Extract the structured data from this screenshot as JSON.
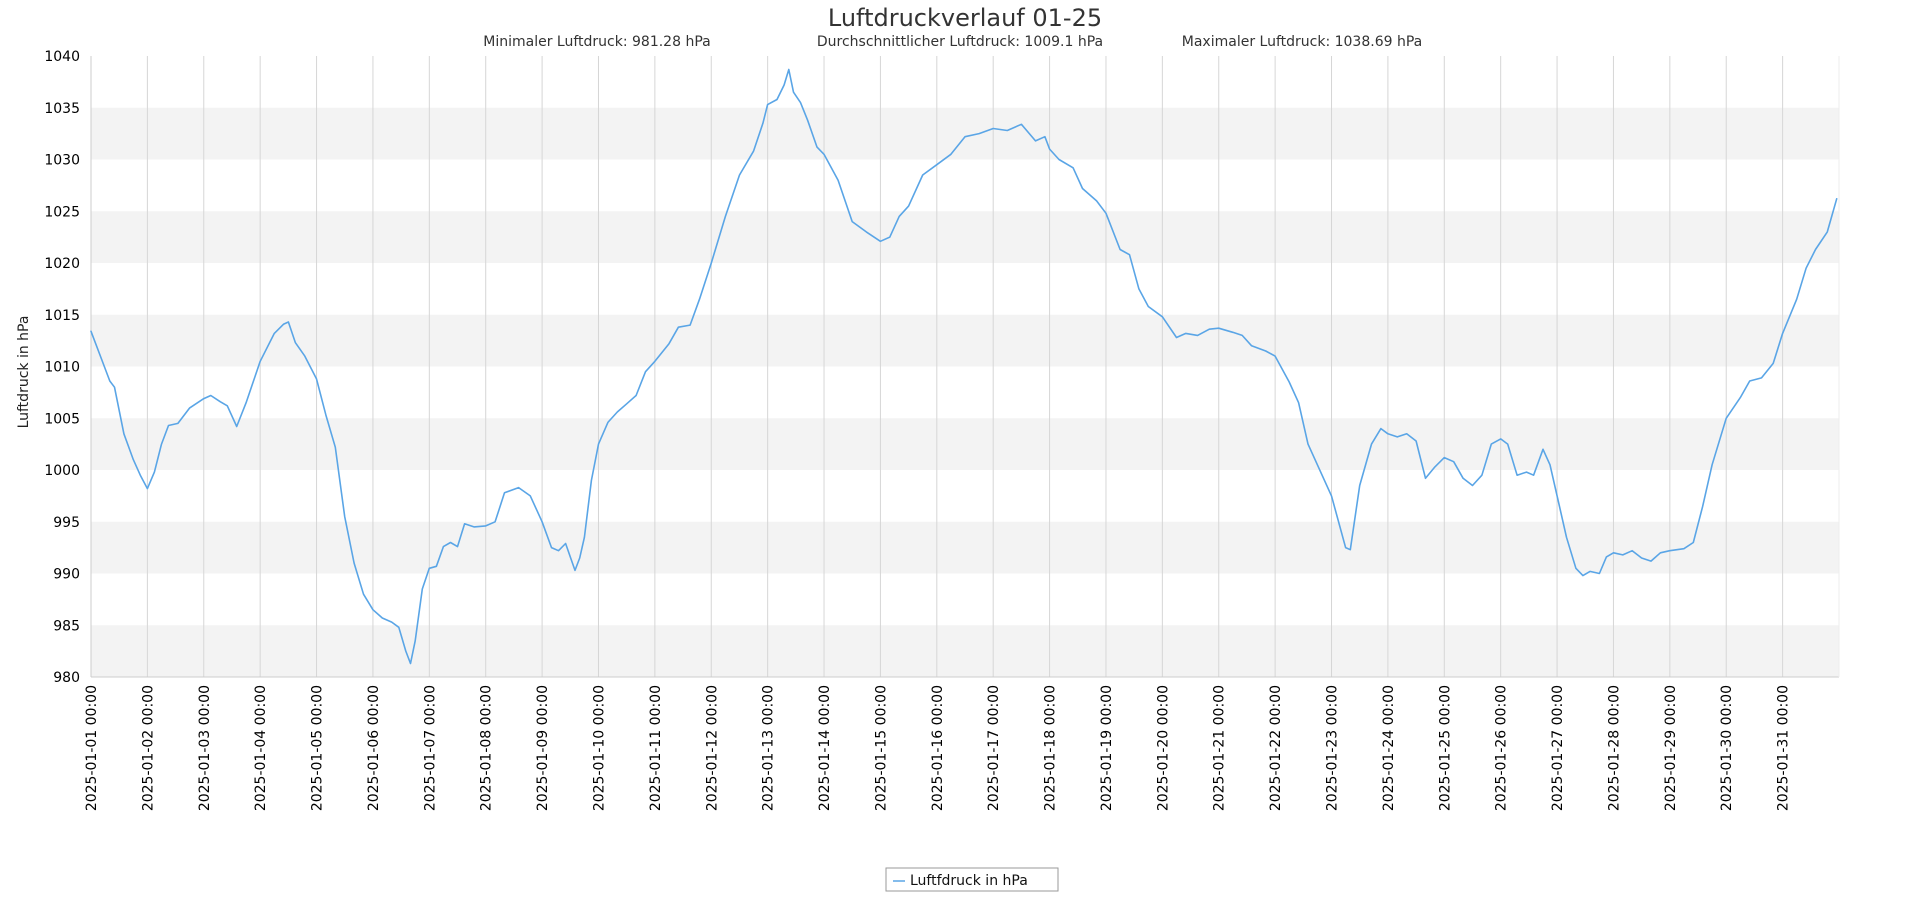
{
  "chart_data": {
    "type": "line",
    "title": "Luftdruckverlauf 01-25",
    "stats": {
      "min": "Minimaler Luftdruck: 981.28 hPa",
      "avg": "Durchschnittlicher Luftdruck: 1009.1 hPa",
      "max": "Maximaler Luftdruck: 1038.69 hPa"
    },
    "ylabel": "Luftdruck in hPa",
    "xlabel": "",
    "ylim": [
      980,
      1040
    ],
    "yticks": [
      980,
      985,
      990,
      995,
      1000,
      1005,
      1010,
      1015,
      1020,
      1025,
      1030,
      1035,
      1040
    ],
    "xlim": [
      "2025-01-01 00:00",
      "2025-02-01 00:00"
    ],
    "xticks": [
      "2025-01-01 00:00",
      "2025-01-02 00:00",
      "2025-01-03 00:00",
      "2025-01-04 00:00",
      "2025-01-05 00:00",
      "2025-01-06 00:00",
      "2025-01-07 00:00",
      "2025-01-08 00:00",
      "2025-01-09 00:00",
      "2025-01-10 00:00",
      "2025-01-11 00:00",
      "2025-01-12 00:00",
      "2025-01-13 00:00",
      "2025-01-14 00:00",
      "2025-01-15 00:00",
      "2025-01-16 00:00",
      "2025-01-17 00:00",
      "2025-01-18 00:00",
      "2025-01-19 00:00",
      "2025-01-20 00:00",
      "2025-01-21 00:00",
      "2025-01-22 00:00",
      "2025-01-23 00:00",
      "2025-01-24 00:00",
      "2025-01-25 00:00",
      "2025-01-26 00:00",
      "2025-01-27 00:00",
      "2025-01-28 00:00",
      "2025-01-29 00:00",
      "2025-01-30 00:00",
      "2025-01-31 00:00"
    ],
    "grid": true,
    "legend_position": "bottom-center",
    "colors": {
      "line": "#5aa5e6",
      "band": "#f3f3f3",
      "gridline": "#d6d6d6",
      "axis": "#cccccc"
    },
    "series": [
      {
        "name": "Luftfdruck in hPa",
        "points": [
          [
            "2025-01-01 00:00",
            1013.4
          ],
          [
            "2025-01-01 04:00",
            1011.0
          ],
          [
            "2025-01-01 08:00",
            1008.6
          ],
          [
            "2025-01-01 10:00",
            1008.0
          ],
          [
            "2025-01-01 14:00",
            1003.5
          ],
          [
            "2025-01-01 18:00",
            1001.0
          ],
          [
            "2025-01-01 21:00",
            999.5
          ],
          [
            "2025-01-02 00:00",
            998.2
          ],
          [
            "2025-01-02 03:00",
            999.8
          ],
          [
            "2025-01-02 06:00",
            1002.5
          ],
          [
            "2025-01-02 09:00",
            1004.3
          ],
          [
            "2025-01-02 13:00",
            1004.5
          ],
          [
            "2025-01-02 18:00",
            1006.0
          ],
          [
            "2025-01-03 00:00",
            1006.9
          ],
          [
            "2025-01-03 03:00",
            1007.2
          ],
          [
            "2025-01-03 07:00",
            1006.6
          ],
          [
            "2025-01-03 10:00",
            1006.2
          ],
          [
            "2025-01-03 14:00",
            1004.2
          ],
          [
            "2025-01-03 18:00",
            1006.5
          ],
          [
            "2025-01-04 00:00",
            1010.5
          ],
          [
            "2025-01-04 06:00",
            1013.2
          ],
          [
            "2025-01-04 10:00",
            1014.1
          ],
          [
            "2025-01-04 12:00",
            1014.3
          ],
          [
            "2025-01-04 15:00",
            1012.3
          ],
          [
            "2025-01-04 19:00",
            1011.0
          ],
          [
            "2025-01-05 00:00",
            1008.8
          ],
          [
            "2025-01-05 04:00",
            1005.3
          ],
          [
            "2025-01-05 08:00",
            1002.2
          ],
          [
            "2025-01-05 12:00",
            995.5
          ],
          [
            "2025-01-05 16:00",
            991.0
          ],
          [
            "2025-01-05 20:00",
            988.0
          ],
          [
            "2025-01-06 00:00",
            986.5
          ],
          [
            "2025-01-06 04:00",
            985.7
          ],
          [
            "2025-01-06 08:00",
            985.3
          ],
          [
            "2025-01-06 11:00",
            984.8
          ],
          [
            "2025-01-06 14:00",
            982.5
          ],
          [
            "2025-01-06 16:00",
            981.3
          ],
          [
            "2025-01-06 18:00",
            983.5
          ],
          [
            "2025-01-06 21:00",
            988.5
          ],
          [
            "2025-01-07 00:00",
            990.5
          ],
          [
            "2025-01-07 03:00",
            990.7
          ],
          [
            "2025-01-07 06:00",
            992.6
          ],
          [
            "2025-01-07 09:00",
            993.0
          ],
          [
            "2025-01-07 12:00",
            992.6
          ],
          [
            "2025-01-07 15:00",
            994.8
          ],
          [
            "2025-01-07 19:00",
            994.5
          ],
          [
            "2025-01-08 00:00",
            994.6
          ],
          [
            "2025-01-08 04:00",
            995.0
          ],
          [
            "2025-01-08 08:00",
            997.8
          ],
          [
            "2025-01-08 14:00",
            998.3
          ],
          [
            "2025-01-08 19:00",
            997.5
          ],
          [
            "2025-01-09 00:00",
            995.0
          ],
          [
            "2025-01-09 04:00",
            992.5
          ],
          [
            "2025-01-09 07:00",
            992.2
          ],
          [
            "2025-01-09 10:00",
            992.9
          ],
          [
            "2025-01-09 14:00",
            990.3
          ],
          [
            "2025-01-09 16:00",
            991.5
          ],
          [
            "2025-01-09 18:00",
            993.5
          ],
          [
            "2025-01-09 21:00",
            999.0
          ],
          [
            "2025-01-10 00:00",
            1002.5
          ],
          [
            "2025-01-10 04:00",
            1004.6
          ],
          [
            "2025-01-10 08:00",
            1005.6
          ],
          [
            "2025-01-10 12:00",
            1006.4
          ],
          [
            "2025-01-10 16:00",
            1007.2
          ],
          [
            "2025-01-10 20:00",
            1009.5
          ],
          [
            "2025-01-11 00:00",
            1010.5
          ],
          [
            "2025-01-11 06:00",
            1012.2
          ],
          [
            "2025-01-11 10:00",
            1013.8
          ],
          [
            "2025-01-11 15:00",
            1014.0
          ],
          [
            "2025-01-11 19:00",
            1016.5
          ],
          [
            "2025-01-12 00:00",
            1020.0
          ],
          [
            "2025-01-12 06:00",
            1024.5
          ],
          [
            "2025-01-12 12:00",
            1028.5
          ],
          [
            "2025-01-12 18:00",
            1030.8
          ],
          [
            "2025-01-12 22:00",
            1033.5
          ],
          [
            "2025-01-13 00:00",
            1035.3
          ],
          [
            "2025-01-13 04:00",
            1035.8
          ],
          [
            "2025-01-13 07:00",
            1037.2
          ],
          [
            "2025-01-13 09:00",
            1038.7
          ],
          [
            "2025-01-13 11:00",
            1036.5
          ],
          [
            "2025-01-13 14:00",
            1035.5
          ],
          [
            "2025-01-13 17:00",
            1033.8
          ],
          [
            "2025-01-13 21:00",
            1031.2
          ],
          [
            "2025-01-14 00:00",
            1030.5
          ],
          [
            "2025-01-14 06:00",
            1028.0
          ],
          [
            "2025-01-14 12:00",
            1024.0
          ],
          [
            "2025-01-14 18:00",
            1023.0
          ],
          [
            "2025-01-15 00:00",
            1022.1
          ],
          [
            "2025-01-15 04:00",
            1022.5
          ],
          [
            "2025-01-15 08:00",
            1024.5
          ],
          [
            "2025-01-15 12:00",
            1025.5
          ],
          [
            "2025-01-15 18:00",
            1028.5
          ],
          [
            "2025-01-16 00:00",
            1029.5
          ],
          [
            "2025-01-16 06:00",
            1030.5
          ],
          [
            "2025-01-16 12:00",
            1032.2
          ],
          [
            "2025-01-16 18:00",
            1032.5
          ],
          [
            "2025-01-17 00:00",
            1033.0
          ],
          [
            "2025-01-17 06:00",
            1032.8
          ],
          [
            "2025-01-17 12:00",
            1033.4
          ],
          [
            "2025-01-17 18:00",
            1031.8
          ],
          [
            "2025-01-17 22:00",
            1032.2
          ],
          [
            "2025-01-18 00:00",
            1031.0
          ],
          [
            "2025-01-18 04:00",
            1030.0
          ],
          [
            "2025-01-18 10:00",
            1029.2
          ],
          [
            "2025-01-18 14:00",
            1027.2
          ],
          [
            "2025-01-18 20:00",
            1026.0
          ],
          [
            "2025-01-19 00:00",
            1024.8
          ],
          [
            "2025-01-19 06:00",
            1021.3
          ],
          [
            "2025-01-19 10:00",
            1020.8
          ],
          [
            "2025-01-19 14:00",
            1017.5
          ],
          [
            "2025-01-19 18:00",
            1015.8
          ],
          [
            "2025-01-20 00:00",
            1014.8
          ],
          [
            "2025-01-20 06:00",
            1012.8
          ],
          [
            "2025-01-20 10:00",
            1013.2
          ],
          [
            "2025-01-20 15:00",
            1013.0
          ],
          [
            "2025-01-20 20:00",
            1013.6
          ],
          [
            "2025-01-21 00:00",
            1013.7
          ],
          [
            "2025-01-21 06:00",
            1013.3
          ],
          [
            "2025-01-21 10:00",
            1013.0
          ],
          [
            "2025-01-21 14:00",
            1012.0
          ],
          [
            "2025-01-21 20:00",
            1011.5
          ],
          [
            "2025-01-22 00:00",
            1011.0
          ],
          [
            "2025-01-22 06:00",
            1008.5
          ],
          [
            "2025-01-22 10:00",
            1006.5
          ],
          [
            "2025-01-22 14:00",
            1002.5
          ],
          [
            "2025-01-22 18:00",
            1000.5
          ],
          [
            "2025-01-23 00:00",
            997.5
          ],
          [
            "2025-01-23 06:00",
            992.5
          ],
          [
            "2025-01-23 08:00",
            992.3
          ],
          [
            "2025-01-23 12:00",
            998.5
          ],
          [
            "2025-01-23 17:00",
            1002.5
          ],
          [
            "2025-01-23 21:00",
            1004.0
          ],
          [
            "2025-01-24 00:00",
            1003.5
          ],
          [
            "2025-01-24 04:00",
            1003.2
          ],
          [
            "2025-01-24 08:00",
            1003.5
          ],
          [
            "2025-01-24 12:00",
            1002.8
          ],
          [
            "2025-01-24 16:00",
            999.2
          ],
          [
            "2025-01-24 20:00",
            1000.3
          ],
          [
            "2025-01-25 00:00",
            1001.2
          ],
          [
            "2025-01-25 04:00",
            1000.8
          ],
          [
            "2025-01-25 08:00",
            999.2
          ],
          [
            "2025-01-25 12:00",
            998.5
          ],
          [
            "2025-01-25 16:00",
            999.5
          ],
          [
            "2025-01-25 20:00",
            1002.5
          ],
          [
            "2025-01-26 00:00",
            1003.0
          ],
          [
            "2025-01-26 03:00",
            1002.5
          ],
          [
            "2025-01-26 07:00",
            999.5
          ],
          [
            "2025-01-26 11:00",
            999.8
          ],
          [
            "2025-01-26 14:00",
            999.5
          ],
          [
            "2025-01-26 18:00",
            1002.0
          ],
          [
            "2025-01-26 21:00",
            1000.5
          ],
          [
            "2025-01-27 00:00",
            997.5
          ],
          [
            "2025-01-27 04:00",
            993.5
          ],
          [
            "2025-01-27 08:00",
            990.5
          ],
          [
            "2025-01-27 11:00",
            989.8
          ],
          [
            "2025-01-27 14:00",
            990.2
          ],
          [
            "2025-01-27 18:00",
            990.0
          ],
          [
            "2025-01-27 21:00",
            991.6
          ],
          [
            "2025-01-28 00:00",
            992.0
          ],
          [
            "2025-01-28 04:00",
            991.8
          ],
          [
            "2025-01-28 08:00",
            992.2
          ],
          [
            "2025-01-28 12:00",
            991.5
          ],
          [
            "2025-01-28 16:00",
            991.2
          ],
          [
            "2025-01-28 20:00",
            992.0
          ],
          [
            "2025-01-29 00:00",
            992.2
          ],
          [
            "2025-01-29 06:00",
            992.4
          ],
          [
            "2025-01-29 10:00",
            993.0
          ],
          [
            "2025-01-29 14:00",
            996.5
          ],
          [
            "2025-01-29 18:00",
            1000.5
          ],
          [
            "2025-01-29 22:00",
            1003.5
          ],
          [
            "2025-01-30 00:00",
            1005.0
          ],
          [
            "2025-01-30 06:00",
            1007.0
          ],
          [
            "2025-01-30 10:00",
            1008.6
          ],
          [
            "2025-01-30 15:00",
            1008.9
          ],
          [
            "2025-01-30 20:00",
            1010.3
          ],
          [
            "2025-01-31 00:00",
            1013.2
          ],
          [
            "2025-01-31 06:00",
            1016.5
          ],
          [
            "2025-01-31 10:00",
            1019.5
          ],
          [
            "2025-01-31 14:00",
            1021.3
          ],
          [
            "2025-01-31 19:00",
            1023.0
          ],
          [
            "2025-01-31 23:00",
            1026.2
          ]
        ]
      }
    ]
  }
}
